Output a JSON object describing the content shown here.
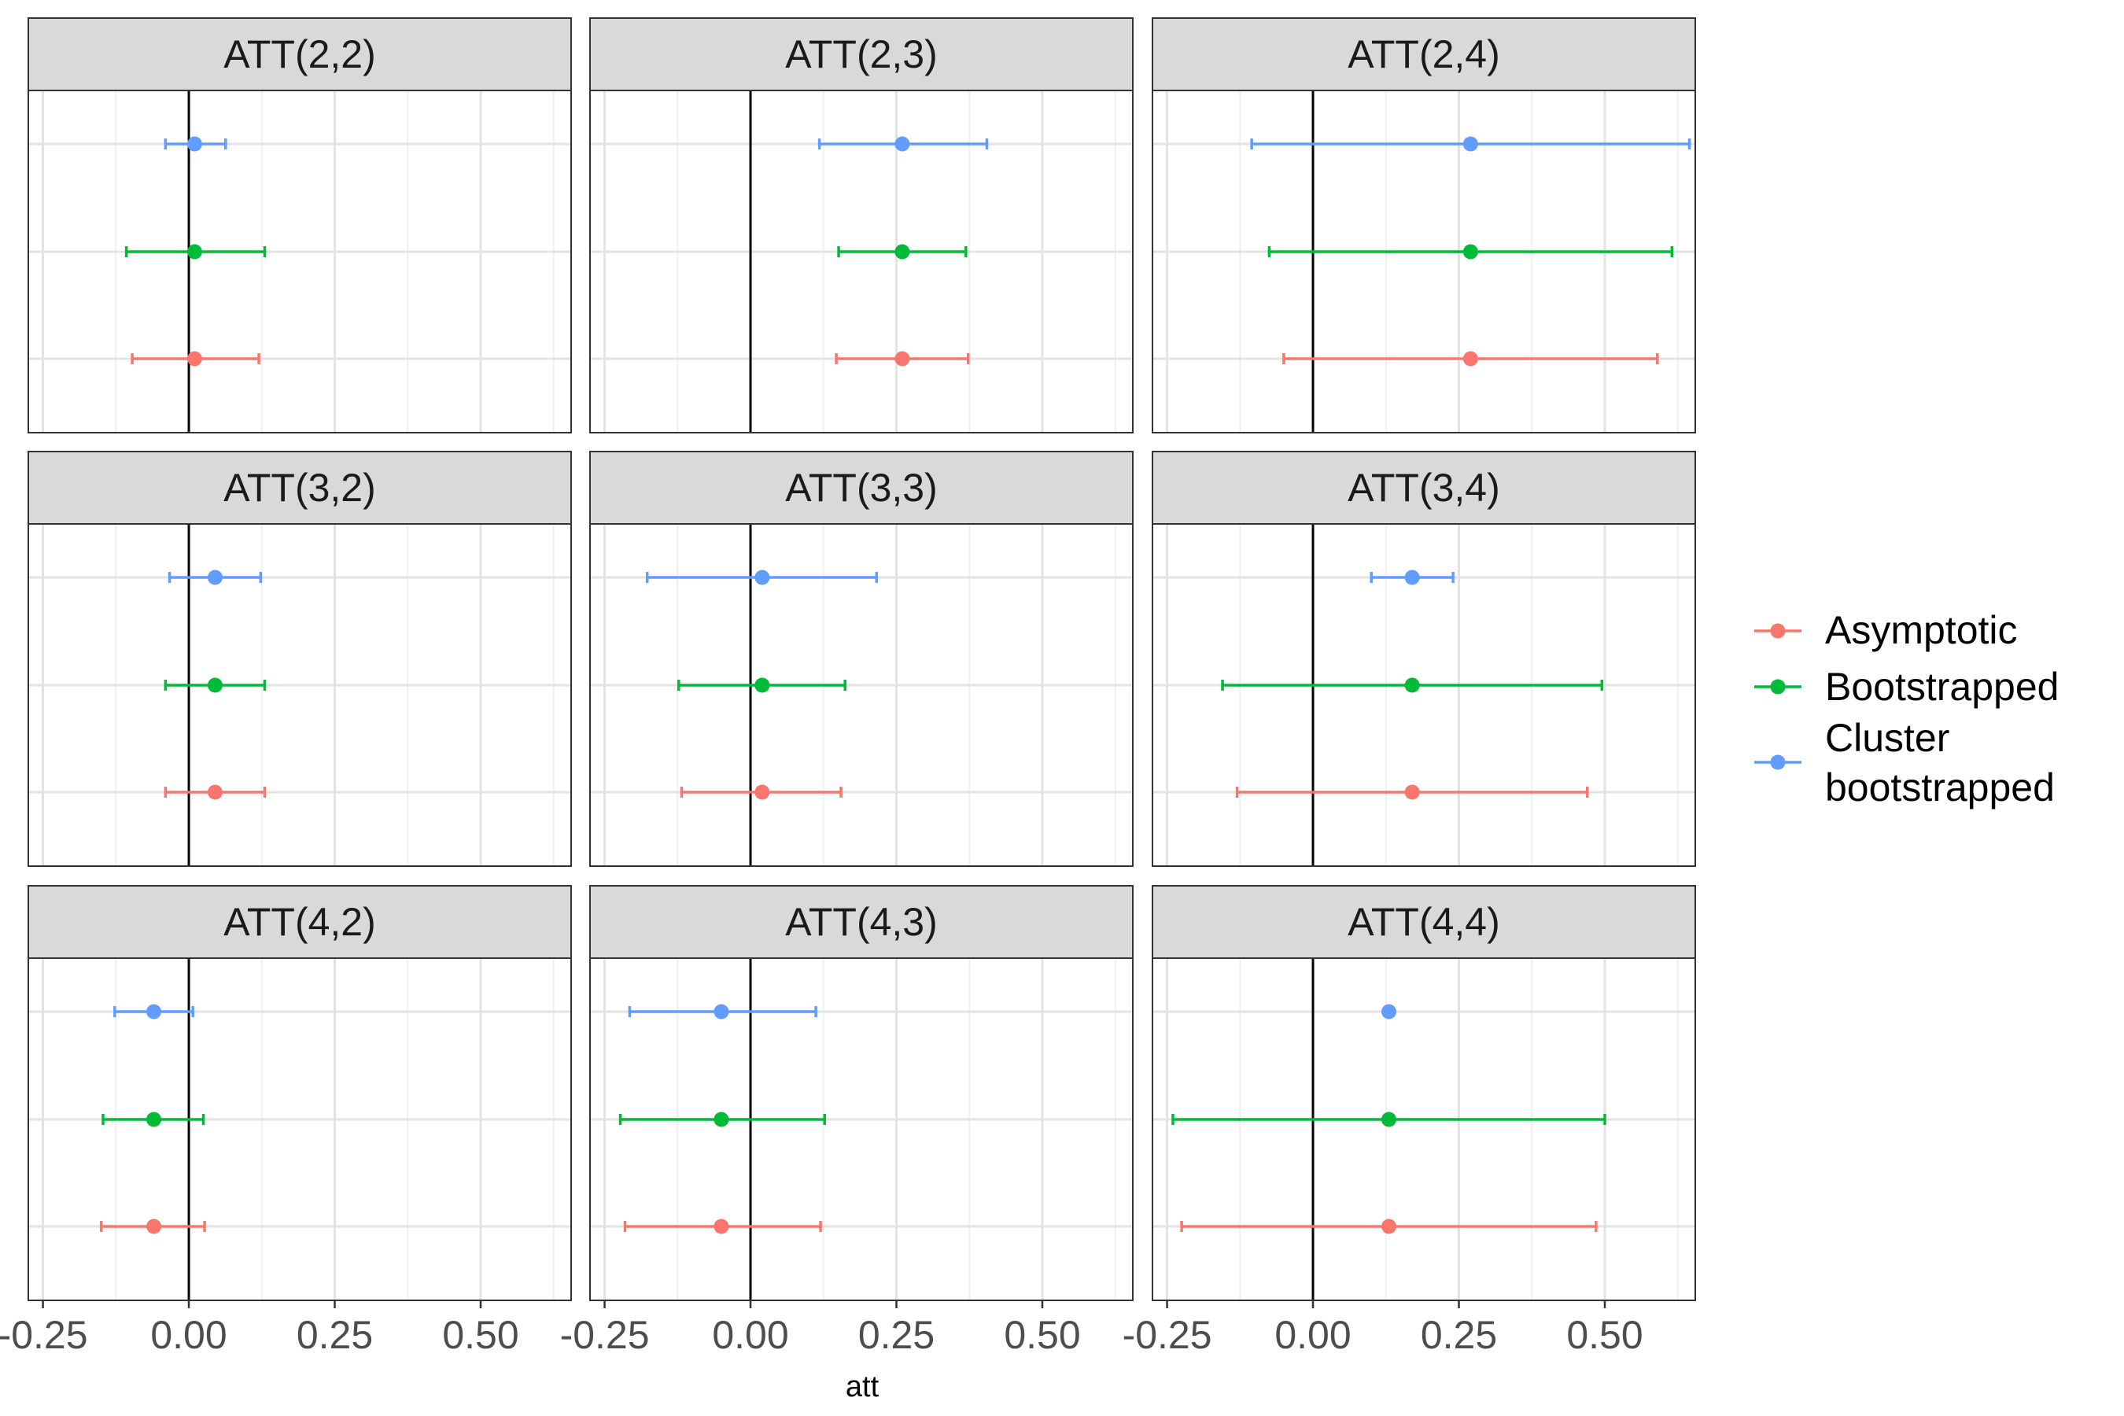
{
  "chart_data": {
    "type": "errorbar-facet",
    "xlabel": "att",
    "xlim": [
      -0.275,
      0.655
    ],
    "x_ticks": [
      -0.25,
      0.0,
      0.25,
      0.5
    ],
    "x_tick_labels": [
      "-0.25",
      "0.00",
      "0.25",
      "0.50"
    ],
    "x_minor_ticks": [
      -0.125,
      0.125,
      0.375,
      0.625
    ],
    "zero_line": 0.0,
    "grid": true,
    "legend_position": "right",
    "series_order_bottom_to_top": [
      "Asymptotic",
      "Bootstrapped",
      "Cluster bootstrapped"
    ],
    "colors": {
      "Asymptotic": "#F8766D",
      "Bootstrapped": "#00BA38",
      "Cluster bootstrapped": "#619CFF"
    },
    "legend": [
      {
        "key": "Asymptotic",
        "lines": [
          "Asymptotic"
        ]
      },
      {
        "key": "Bootstrapped",
        "lines": [
          "Bootstrapped"
        ]
      },
      {
        "key": "Cluster bootstrapped",
        "lines": [
          "Cluster",
          "bootstrapped"
        ]
      }
    ],
    "panels": [
      {
        "title": "ATT(2,2)",
        "estimates": {
          "Asymptotic": {
            "est": 0.01,
            "lo": -0.097,
            "hi": 0.12
          },
          "Bootstrapped": {
            "est": 0.01,
            "lo": -0.107,
            "hi": 0.13
          },
          "Cluster bootstrapped": {
            "est": 0.01,
            "lo": -0.04,
            "hi": 0.063
          }
        }
      },
      {
        "title": "ATT(2,3)",
        "estimates": {
          "Asymptotic": {
            "est": 0.26,
            "lo": 0.147,
            "hi": 0.373
          },
          "Bootstrapped": {
            "est": 0.26,
            "lo": 0.151,
            "hi": 0.369
          },
          "Cluster bootstrapped": {
            "est": 0.26,
            "lo": 0.118,
            "hi": 0.405
          }
        }
      },
      {
        "title": "ATT(2,4)",
        "estimates": {
          "Asymptotic": {
            "est": 0.27,
            "lo": -0.05,
            "hi": 0.59
          },
          "Bootstrapped": {
            "est": 0.27,
            "lo": -0.075,
            "hi": 0.615
          },
          "Cluster bootstrapped": {
            "est": 0.27,
            "lo": -0.105,
            "hi": 0.645
          }
        }
      },
      {
        "title": "ATT(3,2)",
        "estimates": {
          "Asymptotic": {
            "est": 0.045,
            "lo": -0.04,
            "hi": 0.13
          },
          "Bootstrapped": {
            "est": 0.045,
            "lo": -0.04,
            "hi": 0.13
          },
          "Cluster bootstrapped": {
            "est": 0.045,
            "lo": -0.033,
            "hi": 0.123
          }
        }
      },
      {
        "title": "ATT(3,3)",
        "estimates": {
          "Asymptotic": {
            "est": 0.02,
            "lo": -0.118,
            "hi": 0.155
          },
          "Bootstrapped": {
            "est": 0.02,
            "lo": -0.123,
            "hi": 0.162
          },
          "Cluster bootstrapped": {
            "est": 0.02,
            "lo": -0.177,
            "hi": 0.216
          }
        }
      },
      {
        "title": "ATT(3,4)",
        "estimates": {
          "Asymptotic": {
            "est": 0.17,
            "lo": -0.13,
            "hi": 0.47
          },
          "Bootstrapped": {
            "est": 0.17,
            "lo": -0.155,
            "hi": 0.495
          },
          "Cluster bootstrapped": {
            "est": 0.17,
            "lo": 0.1,
            "hi": 0.24
          }
        }
      },
      {
        "title": "ATT(4,2)",
        "estimates": {
          "Asymptotic": {
            "est": -0.06,
            "lo": -0.15,
            "hi": 0.027
          },
          "Bootstrapped": {
            "est": -0.06,
            "lo": -0.147,
            "hi": 0.025
          },
          "Cluster bootstrapped": {
            "est": -0.06,
            "lo": -0.127,
            "hi": 0.007
          }
        }
      },
      {
        "title": "ATT(4,3)",
        "estimates": {
          "Asymptotic": {
            "est": -0.05,
            "lo": -0.215,
            "hi": 0.12
          },
          "Bootstrapped": {
            "est": -0.05,
            "lo": -0.223,
            "hi": 0.127
          },
          "Cluster bootstrapped": {
            "est": -0.05,
            "lo": -0.207,
            "hi": 0.112
          }
        }
      },
      {
        "title": "ATT(4,4)",
        "estimates": {
          "Asymptotic": {
            "est": 0.13,
            "lo": -0.225,
            "hi": 0.485
          },
          "Bootstrapped": {
            "est": 0.13,
            "lo": -0.24,
            "hi": 0.5
          },
          "Cluster bootstrapped": {
            "est": 0.13,
            "lo": 0.13,
            "hi": 0.13
          }
        }
      }
    ]
  }
}
